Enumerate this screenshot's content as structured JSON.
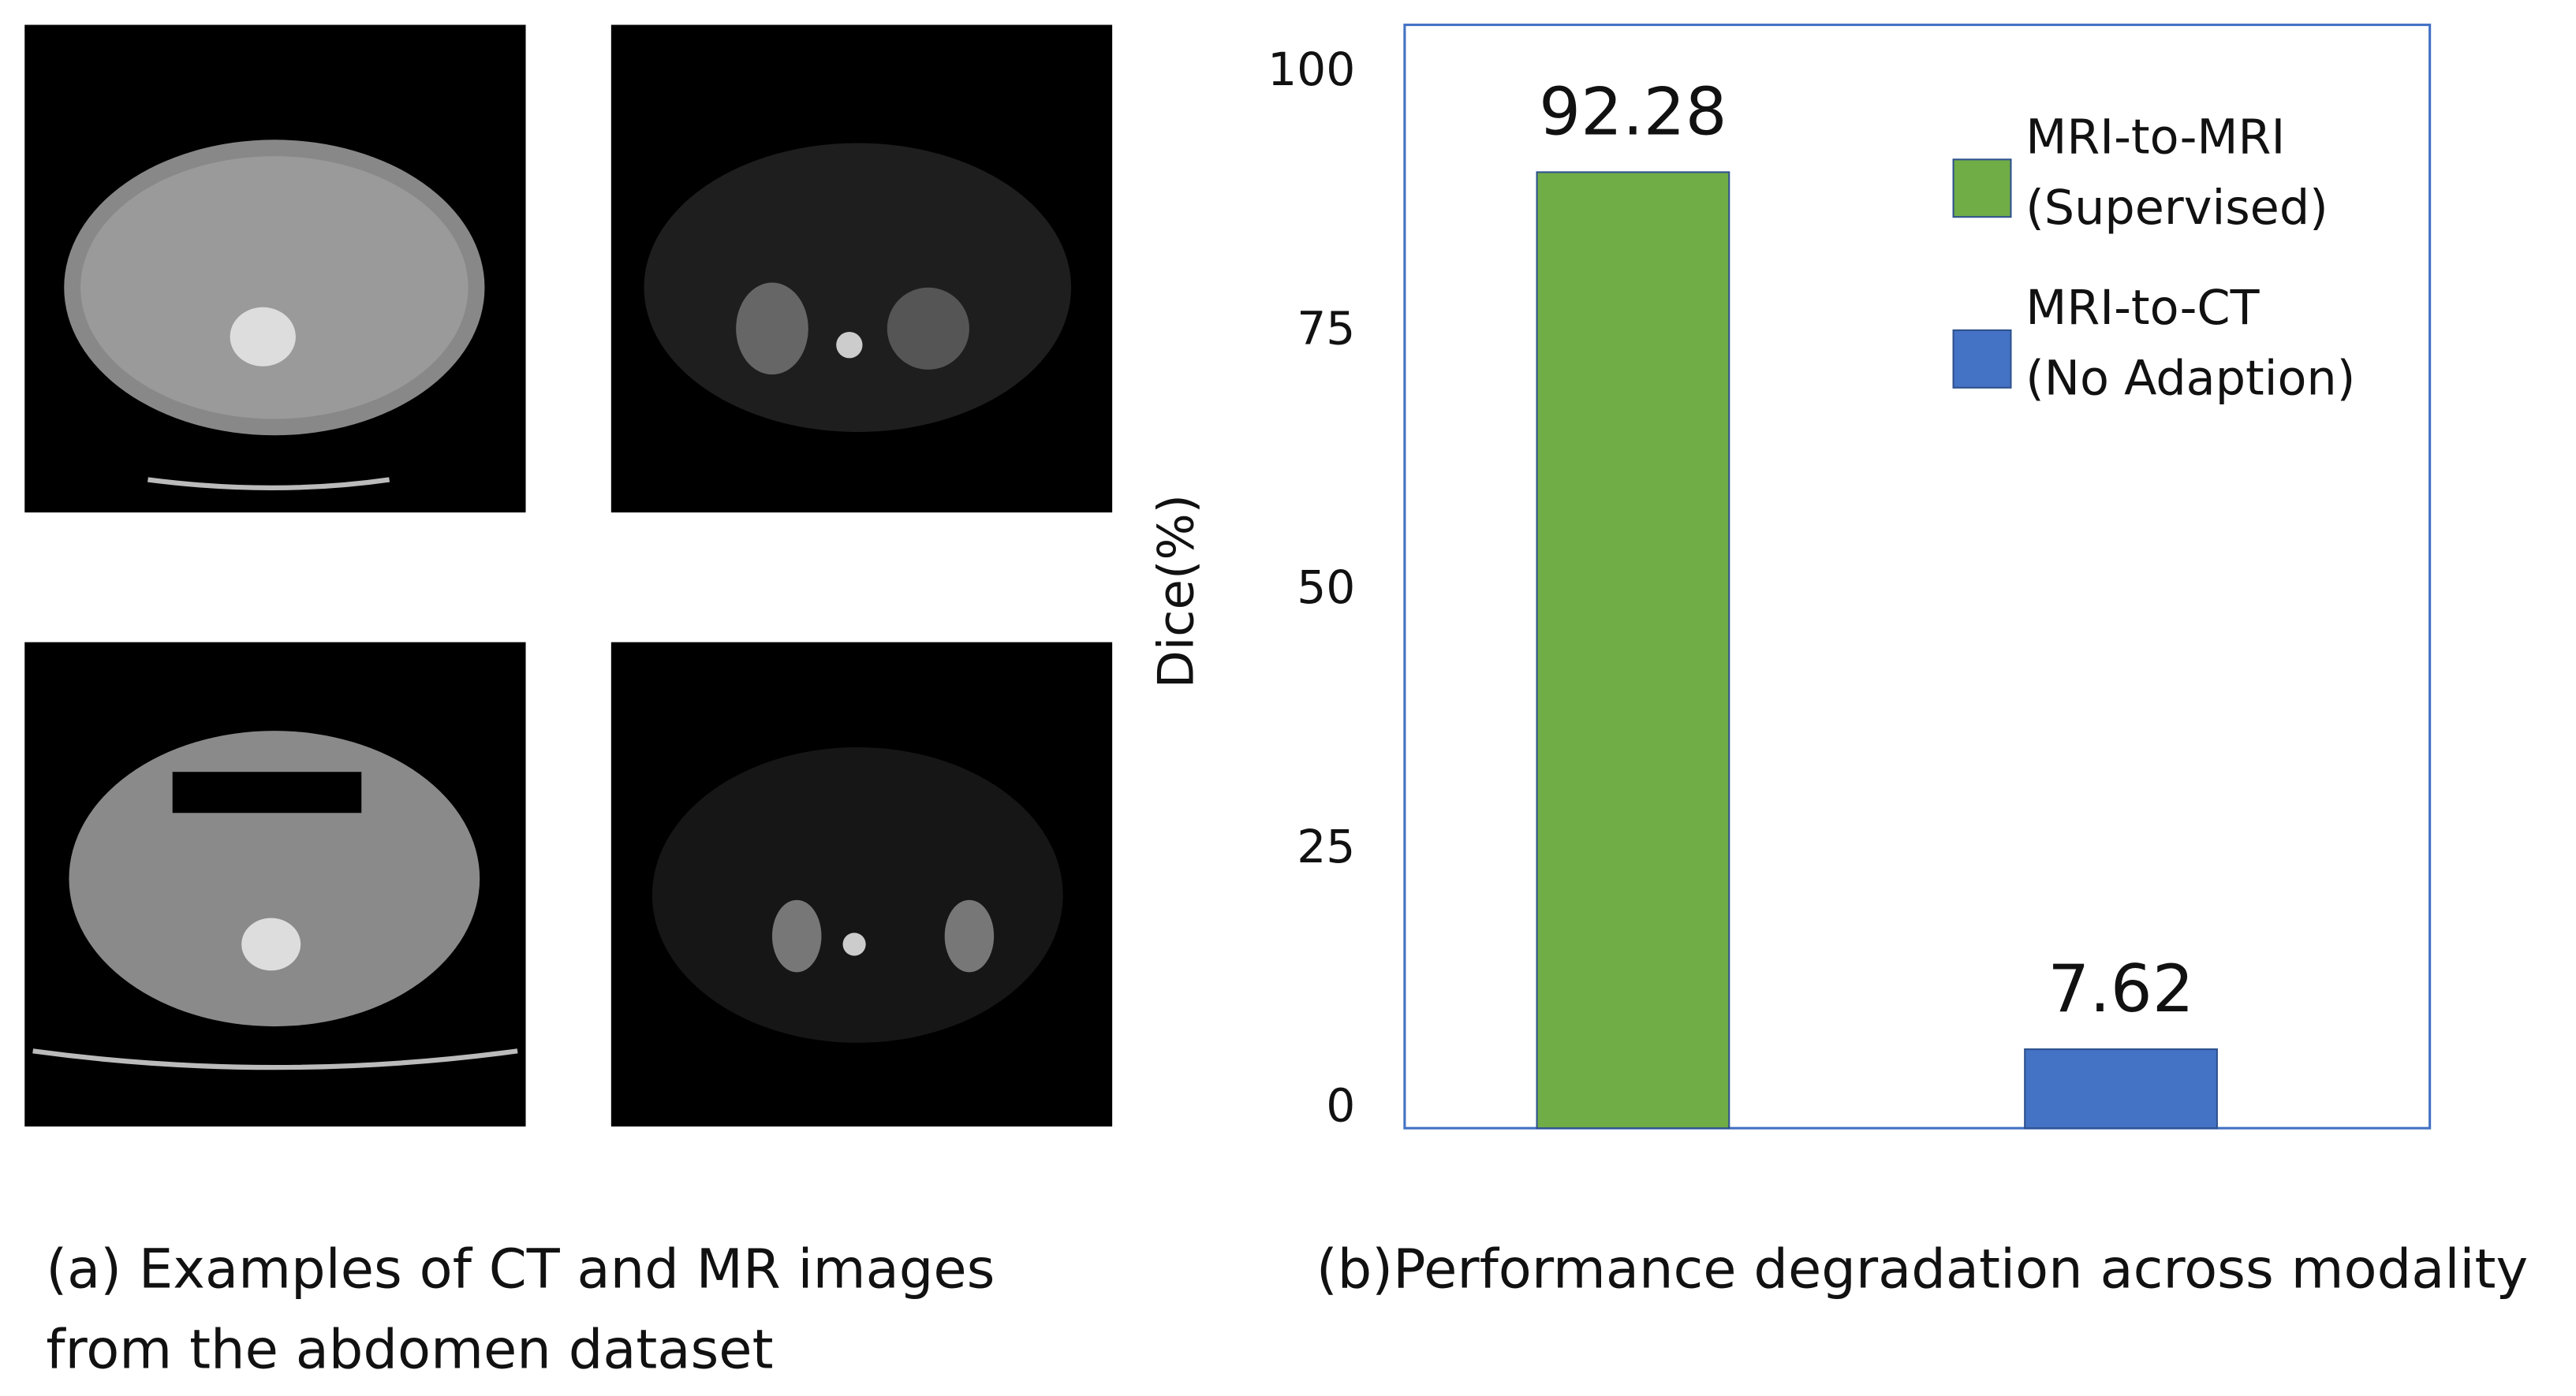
{
  "figure": {
    "left_caption": [
      "(a) Examples of CT and MR images",
      "from the abdomen dataset"
    ]
  },
  "chart_data": {
    "type": "bar",
    "caption": "(b)Performance degradation across modality",
    "y_label": "Dice(%)",
    "categories": [
      null,
      null
    ],
    "series": [
      {
        "name": "MRI-to-MRI (Supervised)",
        "color": "#70ad47",
        "values": [
          92.28,
          null
        ]
      },
      {
        "name": "MRI-to-CT (No Adaption)",
        "color": "#4472c4",
        "values": [
          null,
          7.62
        ]
      }
    ],
    "ylim": [
      0,
      106.5
    ],
    "yticks": [
      0,
      25,
      50,
      75,
      100
    ],
    "grid": false,
    "legend": "top-right",
    "frame_color": "#4472c4"
  }
}
